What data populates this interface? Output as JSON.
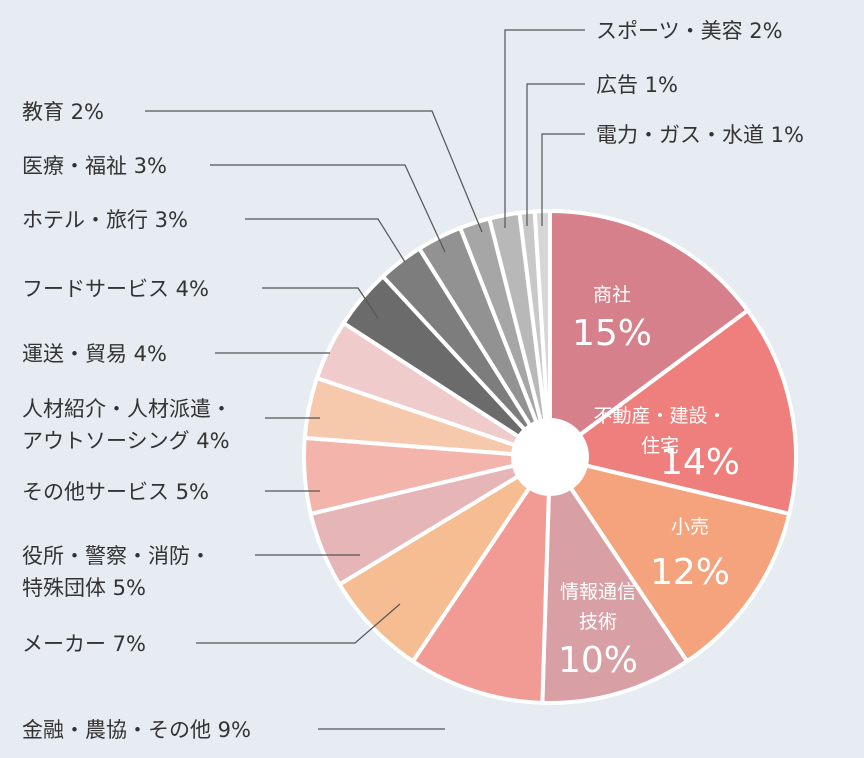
{
  "chart_data": {
    "type": "pie",
    "style": "donut",
    "unit": "%",
    "start_angle": "12 o'clock",
    "direction": "clockwise",
    "slices": [
      {
        "label": "商社",
        "value": 15,
        "color": "#d5808b"
      },
      {
        "label": "不動産・建設・住宅",
        "value": 14,
        "color": "#ee7f7c"
      },
      {
        "label": "小売",
        "value": 12,
        "color": "#f4a37c"
      },
      {
        "label": "情報通信技術",
        "value": 10,
        "color": "#d8a0a4"
      },
      {
        "label": "金融・農協・その他",
        "value": 9,
        "color": "#f19b94"
      },
      {
        "label": "メーカー",
        "value": 7,
        "color": "#f6bd92"
      },
      {
        "label": "役所・警察・消防・特殊団体",
        "value": 5,
        "color": "#e5b5b7"
      },
      {
        "label": "その他サービス",
        "value": 5,
        "color": "#f3b5ab"
      },
      {
        "label": "人材紹介・人材派遣・アウトソーシング",
        "value": 4,
        "color": "#f6c9ad"
      },
      {
        "label": "運送・貿易",
        "value": 4,
        "color": "#f0cbcb"
      },
      {
        "label": "フードサービス",
        "value": 4,
        "color": "#6b6b6b"
      },
      {
        "label": "ホテル・旅行",
        "value": 3,
        "color": "#7d7d7d"
      },
      {
        "label": "医療・福祉",
        "value": 3,
        "color": "#929292"
      },
      {
        "label": "教育",
        "value": 2,
        "color": "#a6a6a6"
      },
      {
        "label": "スポーツ・美容",
        "value": 2,
        "color": "#b8b8b8"
      },
      {
        "label": "広告",
        "value": 1,
        "color": "#c8c8c8"
      },
      {
        "label": "電力・ガス・水道",
        "value": 1,
        "color": "#d6d6d6"
      }
    ],
    "inside_labels": [
      {
        "slice": 0,
        "lines": [
          "商社"
        ],
        "pct": "15%"
      },
      {
        "slice": 1,
        "lines": [
          "不動産・建設・",
          "住宅"
        ],
        "pct": "14%"
      },
      {
        "slice": 2,
        "lines": [
          "小売"
        ],
        "pct": "12%"
      },
      {
        "slice": 3,
        "lines": [
          "情報通信",
          "技術"
        ],
        "pct": "10%"
      }
    ],
    "outside_labels": [
      {
        "slice": 4,
        "lines": [
          "金融・農協・その他  9%"
        ]
      },
      {
        "slice": 5,
        "lines": [
          "メーカー  7%"
        ]
      },
      {
        "slice": 6,
        "lines": [
          "役所・警察・消防・",
          "特殊団体  5%"
        ]
      },
      {
        "slice": 7,
        "lines": [
          "その他サービス  5%"
        ]
      },
      {
        "slice": 8,
        "lines": [
          "人材紹介・人材派遣・",
          "アウトソーシング  4%"
        ]
      },
      {
        "slice": 9,
        "lines": [
          "運送・貿易  4%"
        ]
      },
      {
        "slice": 10,
        "lines": [
          "フードサービス  4%"
        ]
      },
      {
        "slice": 11,
        "lines": [
          "ホテル・旅行  3%"
        ]
      },
      {
        "slice": 12,
        "lines": [
          "医療・福祉  3%"
        ]
      },
      {
        "slice": 13,
        "lines": [
          "教育  2%"
        ]
      },
      {
        "slice": 14,
        "lines": [
          "スポーツ・美容  2%"
        ]
      },
      {
        "slice": 15,
        "lines": [
          "広告  1%"
        ]
      },
      {
        "slice": 16,
        "lines": [
          "電力・ガス・水道  1%"
        ]
      }
    ],
    "background": "#e6ecf1",
    "legend": "none"
  }
}
